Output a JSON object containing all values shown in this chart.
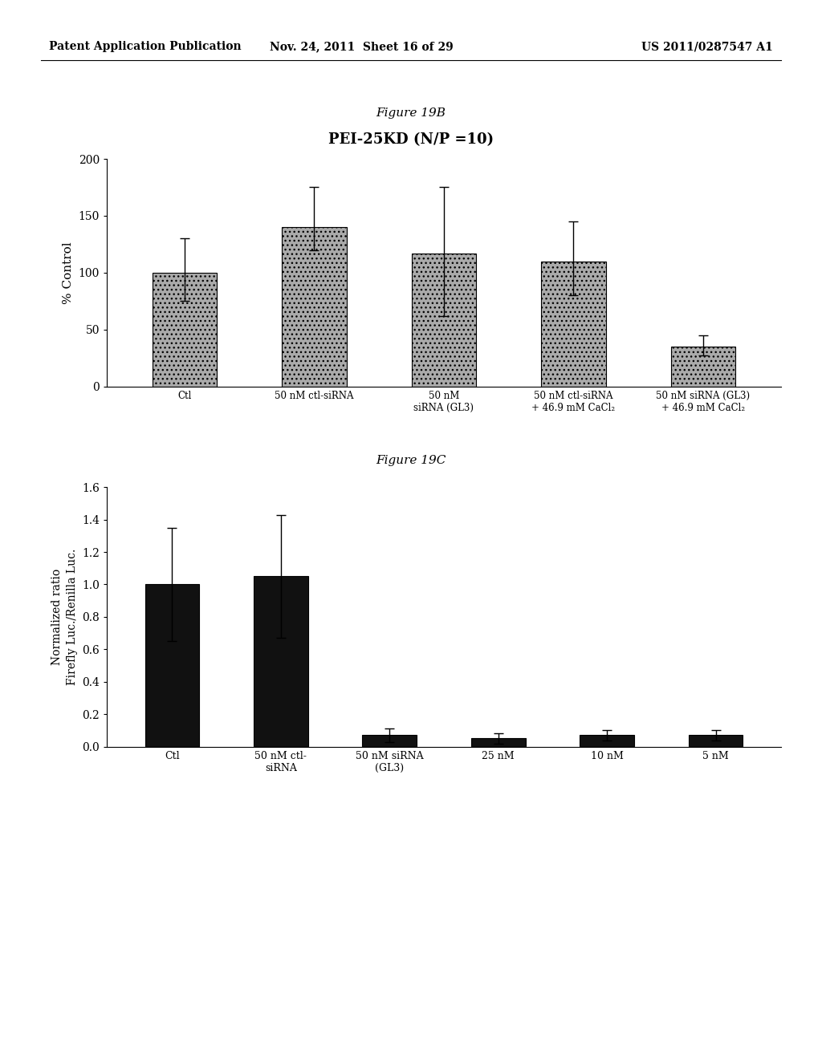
{
  "header_left": "Patent Application Publication",
  "header_mid": "Nov. 24, 2011  Sheet 16 of 29",
  "header_right": "US 2011/0287547 A1",
  "fig19b_title": "Figure 19B",
  "fig19b_bold_title": "PEI-25KD (N/P =10)",
  "fig19b_ylabel": "% Control",
  "fig19b_ylim": [
    0,
    200
  ],
  "fig19b_yticks": [
    0,
    50,
    100,
    150,
    200
  ],
  "fig19b_categories": [
    "Ctl",
    "50 nM ctl-siRNA",
    "50 nM\nsiRNA (GL3)",
    "50 nM ctl-siRNA\n+ 46.9 mM CaCl₂",
    "50 nM siRNA (GL3)\n+ 46.9 mM CaCl₂"
  ],
  "fig19b_values": [
    100,
    140,
    117,
    110,
    35
  ],
  "fig19b_errors_upper": [
    30,
    35,
    58,
    35,
    10
  ],
  "fig19b_errors_lower": [
    25,
    20,
    55,
    30,
    8
  ],
  "fig19b_bar_color": "#aaaaaa",
  "fig19b_bar_hatch": "...",
  "fig19c_title": "Figure 19C",
  "fig19c_ylabel": "Normalized ratio\nFirefly Luc./Renilla Luc.",
  "fig19c_ylim": [
    0.0,
    1.6
  ],
  "fig19c_yticks": [
    0.0,
    0.2,
    0.4,
    0.6,
    0.8,
    1.0,
    1.2,
    1.4,
    1.6
  ],
  "fig19c_categories": [
    "Ctl",
    "50 nM ctl-\nsiRNA",
    "50 nM siRNA\n(GL3)",
    "25 nM",
    "10 nM",
    "5 nM"
  ],
  "fig19c_values": [
    1.0,
    1.05,
    0.07,
    0.05,
    0.07,
    0.07
  ],
  "fig19c_errors_upper": [
    0.35,
    0.38,
    0.04,
    0.03,
    0.03,
    0.03
  ],
  "fig19c_errors_lower": [
    0.35,
    0.38,
    0.04,
    0.03,
    0.03,
    0.03
  ],
  "fig19c_bar_color": "#111111",
  "bg_color": "#ffffff",
  "text_color": "#000000",
  "font_family": "serif"
}
